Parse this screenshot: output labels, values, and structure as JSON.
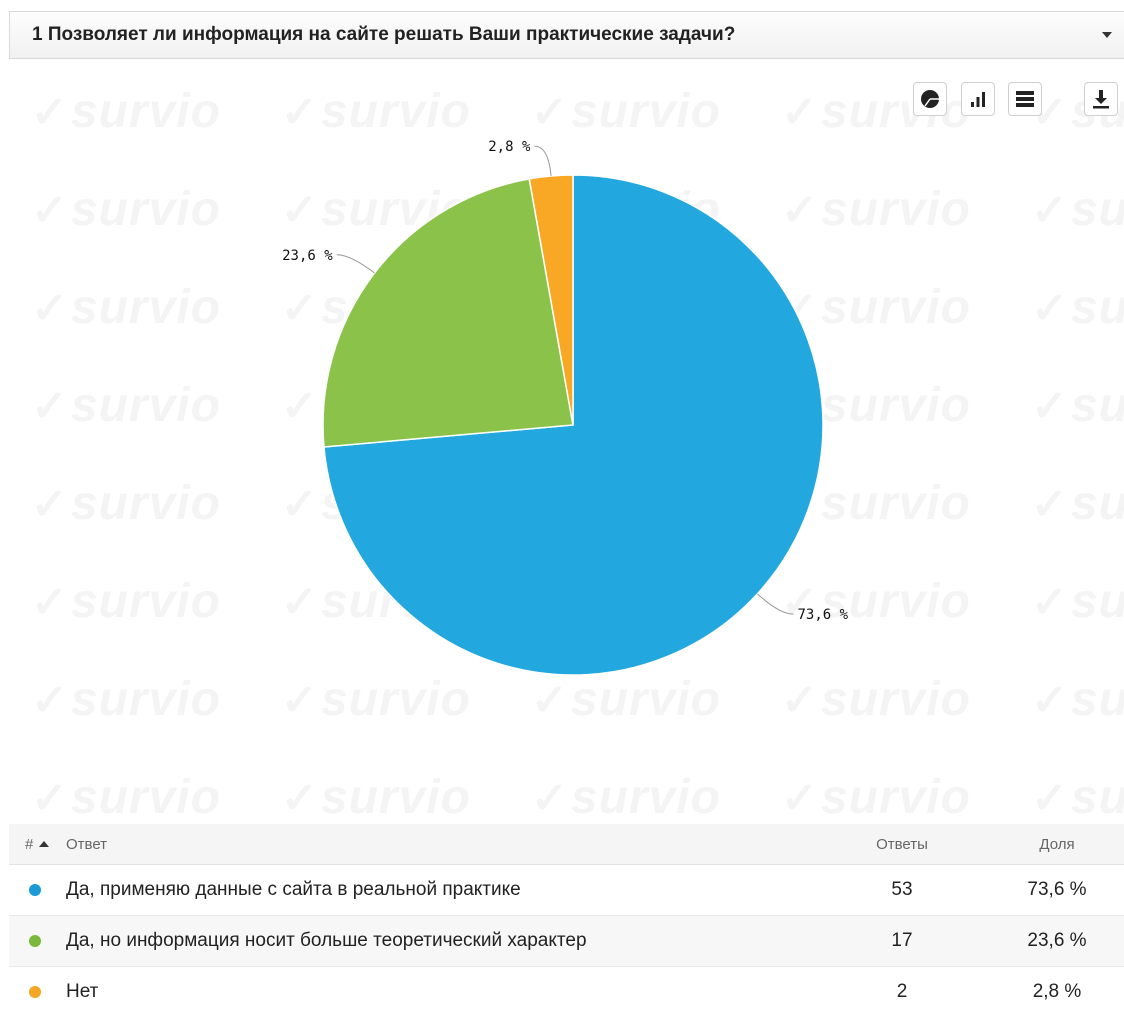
{
  "question": {
    "title": "1 Позволяет ли информация на сайте решать Ваши практические задачи?"
  },
  "watermark": {
    "text": "survio",
    "check": "✓"
  },
  "toolbar": {
    "icons": [
      "pie-chart-icon",
      "bar-chart-icon",
      "table-view-icon",
      "download-icon"
    ]
  },
  "chart_data": {
    "type": "pie",
    "title": "",
    "slices": [
      {
        "label": "Да, применяю данные с сайта в реальной практике",
        "value": 73.6,
        "data_label": "73,6 %",
        "color": "#22a7df"
      },
      {
        "label": "Да, но информация носит больше теоретический характер",
        "value": 23.6,
        "data_label": "23,6 %",
        "color": "#8bc34a"
      },
      {
        "label": "Нет",
        "value": 2.8,
        "data_label": "2,8 %",
        "color": "#f9a825"
      }
    ]
  },
  "table": {
    "headers": {
      "hash": "#",
      "answer": "Ответ",
      "count": "Ответы",
      "share": "Доля"
    },
    "rows": [
      {
        "answer": "Да, применяю данные с сайта в реальной практике",
        "count": "53",
        "share": "73,6 %",
        "color": "#1a9bd7"
      },
      {
        "answer": "Да, но информация носит больше теоретический характер",
        "count": "17",
        "share": "23,6 %",
        "color": "#7cb83b"
      },
      {
        "answer": "Нет",
        "count": "2",
        "share": "2,8 %",
        "color": "#f5a623"
      }
    ]
  }
}
